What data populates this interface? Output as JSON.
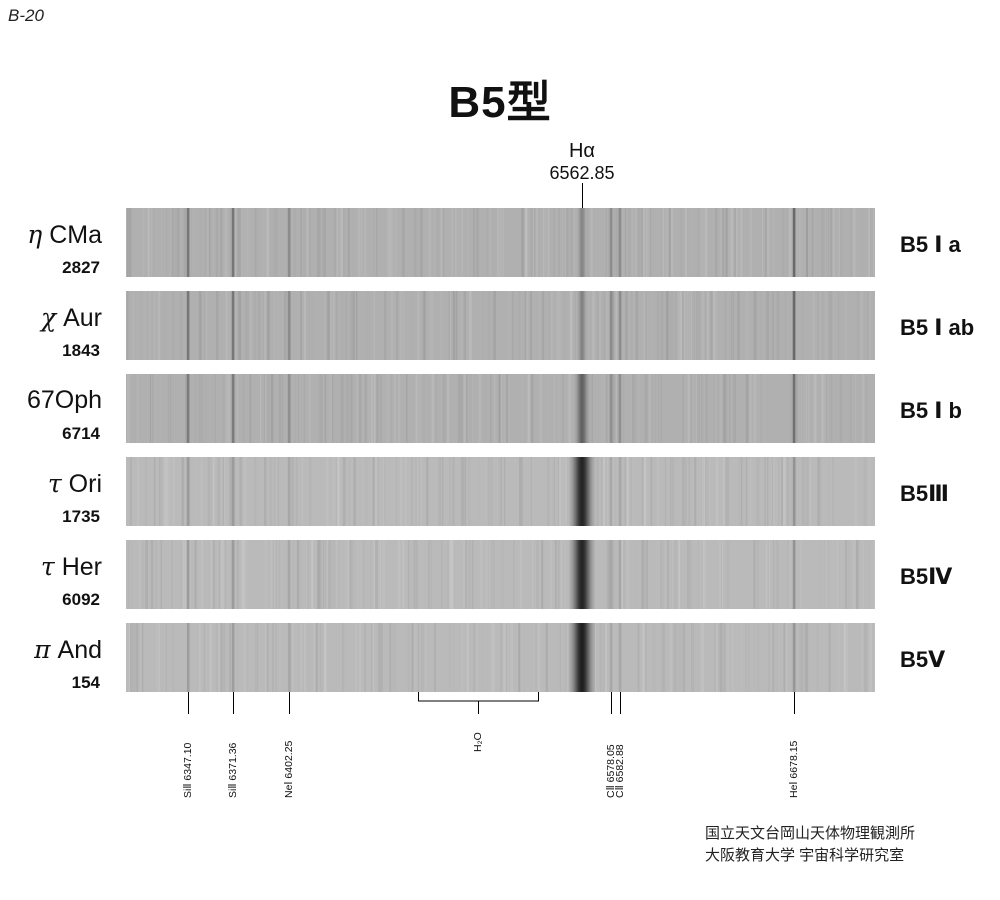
{
  "page_code": "B-20",
  "title": "B5型",
  "halpha": {
    "name": "Hα",
    "wavelength": "6562.85"
  },
  "stars": [
    {
      "greek": "η",
      "name": "CMa",
      "number": "2827",
      "sp_class": "B5 Ⅰ a",
      "halpha_depth": 0.05,
      "lines_depth": 0.55
    },
    {
      "greek": "χ",
      "name": "Aur",
      "number": "1843",
      "sp_class": "B5 Ⅰ ab",
      "halpha_depth": 0.06,
      "lines_depth": 0.55
    },
    {
      "greek": "",
      "name": "67Oph",
      "number": "6714",
      "sp_class": "B5 Ⅰ b",
      "halpha_depth": 0.35,
      "lines_depth": 0.5
    },
    {
      "greek": "τ",
      "name": "Ori",
      "number": "1735",
      "sp_class": "B5Ⅲ",
      "halpha_depth": 0.9,
      "lines_depth": 0.3
    },
    {
      "greek": "τ",
      "name": "Her",
      "number": "6092",
      "sp_class": "B5Ⅳ",
      "halpha_depth": 0.9,
      "lines_depth": 0.3
    },
    {
      "greek": "π",
      "name": "And",
      "number": "154",
      "sp_class": "B5Ⅴ",
      "halpha_depth": 0.95,
      "lines_depth": 0.28
    }
  ],
  "spectral_lines": [
    {
      "label": "SiⅡ 6347.10"
    },
    {
      "label": "SiⅡ 6371.36"
    },
    {
      "label": "NeⅠ 6402.25"
    },
    {
      "label": "CⅡ 6578.05"
    },
    {
      "label": "CⅡ 6582.88"
    },
    {
      "label": "HeⅠ 6678.15"
    }
  ],
  "h2o_label": "H₂O",
  "credit": {
    "line1": "国立天文台岡山天体物理観測所",
    "line2": "大阪教育大学 宇宙科学研究室"
  }
}
